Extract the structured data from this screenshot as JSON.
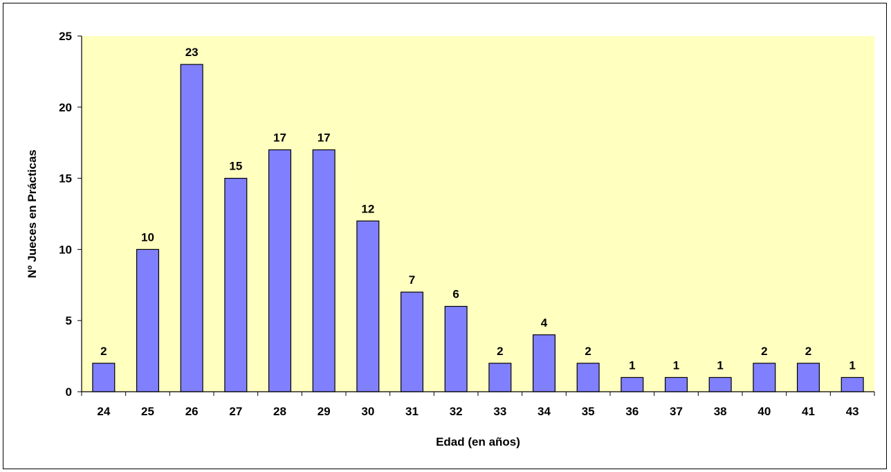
{
  "chart_data": {
    "type": "bar",
    "categories": [
      "24",
      "25",
      "26",
      "27",
      "28",
      "29",
      "30",
      "31",
      "32",
      "33",
      "34",
      "35",
      "36",
      "37",
      "38",
      "40",
      "41",
      "43"
    ],
    "values": [
      2,
      10,
      23,
      15,
      17,
      17,
      12,
      7,
      6,
      2,
      4,
      2,
      1,
      1,
      1,
      2,
      2,
      1
    ],
    "title": "",
    "xlabel": "Edad (en años)",
    "ylabel": "Nº Jueces en Prácticas",
    "ylim": [
      0,
      25
    ],
    "yticks": [
      0,
      5,
      10,
      15,
      20,
      25
    ],
    "grid": false,
    "legend": "none",
    "data_labels": true,
    "colors": {
      "plot_background": "#FFFFC0",
      "bar_fill": "#8080FF",
      "bar_stroke": "#000000"
    }
  }
}
